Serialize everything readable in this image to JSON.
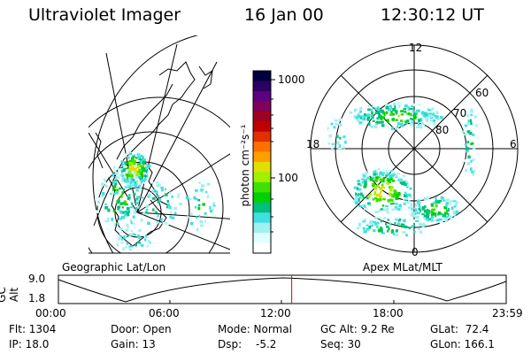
{
  "header": {
    "instrument": "Ultraviolet Imager",
    "date": "16 Jan 00",
    "time": "12:30:12 UT"
  },
  "colorbar": {
    "unit_label": "photon cm⁻²s⁻¹",
    "ticks": [
      "1000",
      "100"
    ],
    "colors": [
      "#000040",
      "#2a0060",
      "#5a0080",
      "#80005a",
      "#a00020",
      "#c00000",
      "#e03000",
      "#ff7000",
      "#ffa000",
      "#e0e000",
      "#a0f000",
      "#40e000",
      "#00d000",
      "#00c080",
      "#40e0e0",
      "#a0f0f0",
      "#e0ffff",
      "#ffffff"
    ]
  },
  "panels": {
    "left_caption": "Geographic Lat/Lon",
    "right_caption": "Apex MLat/MLT",
    "polar_labels": {
      "mlt_top": "12",
      "mlt_bottom": "0",
      "mlt_left": "18",
      "mlt_right": "6",
      "lat_60": "60",
      "lat_70": "70",
      "lat_80": "80"
    }
  },
  "orbit": {
    "ylabel": "GC Alt",
    "y_max": "9.0",
    "y_min": "1.8",
    "x_ticks": [
      "00:00",
      "06:00",
      "12:00",
      "18:00",
      "23:59"
    ],
    "current_time_fraction": 0.521
  },
  "status": {
    "flt": "Flt: 1304",
    "door": "Door: Open",
    "mode": "Mode: Normal",
    "gc_alt": "GC Alt: 9.2 Re",
    "glat": "GLat:  72.4",
    "ip": "IP: 18.0",
    "gain": "Gain: 13",
    "dsp_label": "Dsp:",
    "dsp_value": "-5.2",
    "seq": "Seq: 30",
    "glon": "GLon: 166.1"
  }
}
